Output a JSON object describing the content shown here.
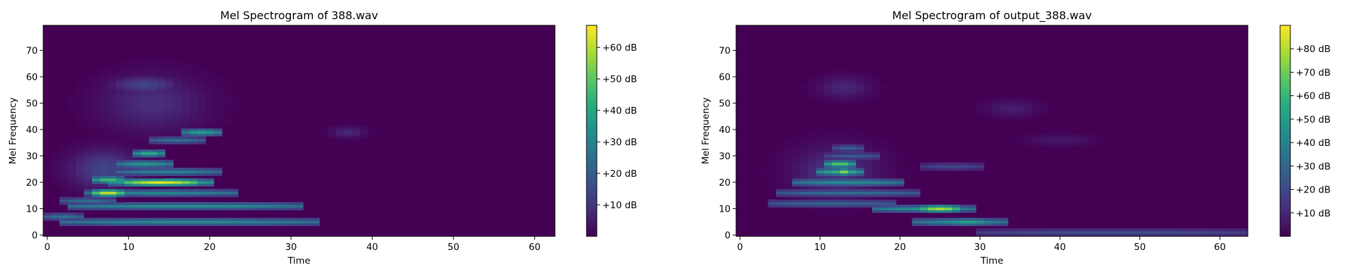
{
  "chart_data": [
    {
      "type": "heatmap",
      "title": "Mel Spectrogram of 388.wav",
      "xlabel": "Time",
      "ylabel": "Mel Frequency",
      "xlim": [
        -0.5,
        62.5
      ],
      "ylim": [
        -0.5,
        79.5
      ],
      "x_ticks": [
        0,
        10,
        20,
        30,
        40,
        50,
        60
      ],
      "y_ticks": [
        0,
        10,
        20,
        30,
        40,
        50,
        60,
        70
      ],
      "n_time": 63,
      "n_mel": 80,
      "colormap": "viridis",
      "colorbar": {
        "vmin": 0,
        "vmax": 67,
        "ticks": [
          10,
          20,
          30,
          40,
          50,
          60
        ],
        "tick_labels": [
          "+10 dB",
          "+20 dB",
          "+30 dB",
          "+40 dB",
          "+50 dB",
          "+60 dB"
        ]
      },
      "background_db": 0,
      "ridges": [
        {
          "mel": 5,
          "t_start": 2,
          "t_end": 33,
          "db": 32
        },
        {
          "mel": 7,
          "t_start": 0,
          "t_end": 4,
          "db": 26
        },
        {
          "mel": 11,
          "t_start": 3,
          "t_end": 31,
          "db": 33
        },
        {
          "mel": 13,
          "t_start": 2,
          "t_end": 8,
          "db": 24
        },
        {
          "mel": 16,
          "t_start": 5,
          "t_end": 23,
          "db": 31
        },
        {
          "mel": 16,
          "t_start": 6,
          "t_end": 9,
          "db": 62
        },
        {
          "mel": 20,
          "t_start": 8,
          "t_end": 20,
          "db": 44
        },
        {
          "mel": 20,
          "t_start": 10,
          "t_end": 18,
          "db": 64
        },
        {
          "mel": 21,
          "t_start": 6,
          "t_end": 9,
          "db": 47
        },
        {
          "mel": 24,
          "t_start": 9,
          "t_end": 21,
          "db": 30
        },
        {
          "mel": 27,
          "t_start": 9,
          "t_end": 15,
          "db": 36
        },
        {
          "mel": 31,
          "t_start": 11,
          "t_end": 14,
          "db": 42
        },
        {
          "mel": 36,
          "t_start": 13,
          "t_end": 19,
          "db": 25
        },
        {
          "mel": 39,
          "t_start": 17,
          "t_end": 21,
          "db": 38
        }
      ],
      "blobs": [
        {
          "mel": 25,
          "t": 7,
          "mel_spread": 7,
          "t_spread": 4,
          "db": 14
        },
        {
          "mel": 50,
          "t": 13,
          "mel_spread": 10,
          "t_spread": 6,
          "db": 9
        },
        {
          "mel": 57,
          "t": 12,
          "mel_spread": 3,
          "t_spread": 4,
          "db": 14
        },
        {
          "mel": 39,
          "t": 37,
          "mel_spread": 2,
          "t_spread": 2,
          "db": 8
        }
      ]
    },
    {
      "type": "heatmap",
      "title": "Mel Spectrogram of output_388.wav",
      "xlabel": "Time",
      "ylabel": "Mel Frequency",
      "xlim": [
        -0.5,
        63.5
      ],
      "ylim": [
        -0.5,
        79.5
      ],
      "x_ticks": [
        0,
        10,
        20,
        30,
        40,
        50,
        60
      ],
      "y_ticks": [
        0,
        10,
        20,
        30,
        40,
        50,
        60,
        70
      ],
      "n_time": 64,
      "n_mel": 80,
      "colormap": "viridis",
      "colorbar": {
        "vmin": 0,
        "vmax": 90,
        "ticks": [
          10,
          20,
          30,
          40,
          50,
          60,
          70,
          80
        ],
        "tick_labels": [
          "+10 dB",
          "+20 dB",
          "+30 dB",
          "+40 dB",
          "+50 dB",
          "+60 dB",
          "+70 dB",
          "+80 dB"
        ]
      },
      "background_db": 0,
      "ridges": [
        {
          "mel": 1,
          "t_start": 30,
          "t_end": 63,
          "db": 22
        },
        {
          "mel": 5,
          "t_start": 22,
          "t_end": 33,
          "db": 44
        },
        {
          "mel": 5,
          "t_start": 26,
          "t_end": 31,
          "db": 52
        },
        {
          "mel": 10,
          "t_start": 17,
          "t_end": 29,
          "db": 45
        },
        {
          "mel": 10,
          "t_start": 23,
          "t_end": 27,
          "db": 78
        },
        {
          "mel": 12,
          "t_start": 4,
          "t_end": 19,
          "db": 30
        },
        {
          "mel": 16,
          "t_start": 5,
          "t_end": 22,
          "db": 32
        },
        {
          "mel": 20,
          "t_start": 7,
          "t_end": 20,
          "db": 44
        },
        {
          "mel": 24,
          "t_start": 10,
          "t_end": 15,
          "db": 58
        },
        {
          "mel": 24,
          "t_start": 12,
          "t_end": 14,
          "db": 72
        },
        {
          "mel": 27,
          "t_start": 11,
          "t_end": 14,
          "db": 66
        },
        {
          "mel": 27,
          "t_start": 12,
          "t_end": 13,
          "db": 86
        },
        {
          "mel": 30,
          "t_start": 11,
          "t_end": 17,
          "db": 26
        },
        {
          "mel": 33,
          "t_start": 12,
          "t_end": 15,
          "db": 28
        },
        {
          "mel": 26,
          "t_start": 23,
          "t_end": 30,
          "db": 20
        }
      ],
      "blobs": [
        {
          "mel": 24,
          "t": 12,
          "mel_spread": 9,
          "t_spread": 5,
          "db": 14
        },
        {
          "mel": 56,
          "t": 13,
          "mel_spread": 4,
          "t_spread": 3,
          "db": 10
        },
        {
          "mel": 48,
          "t": 34,
          "mel_spread": 3,
          "t_spread": 3,
          "db": 8
        },
        {
          "mel": 36,
          "t": 40,
          "mel_spread": 2,
          "t_spread": 4,
          "db": 6
        }
      ]
    }
  ]
}
